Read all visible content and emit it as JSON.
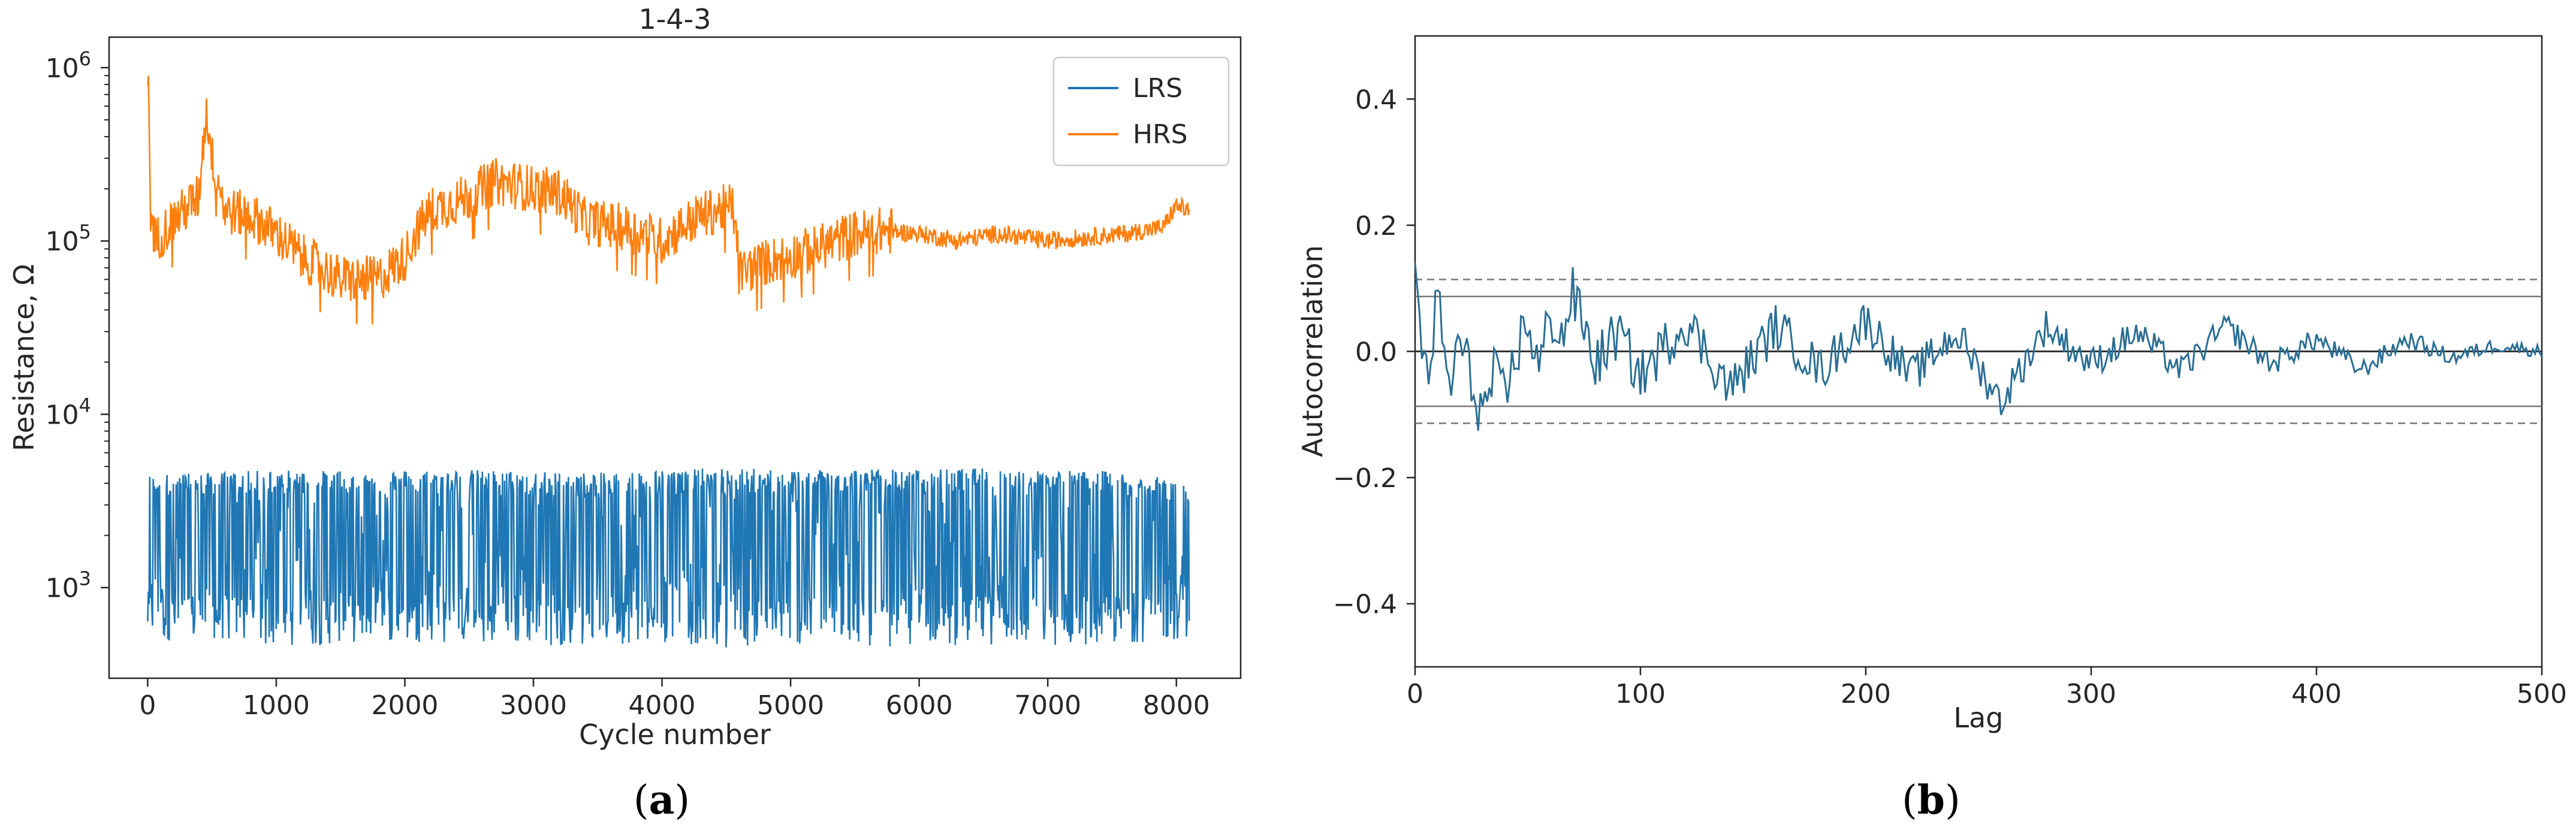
{
  "chart_data": [
    {
      "type": "line",
      "title": "1-4-3",
      "xlabel": "Cycle number",
      "ylabel": "Resistance, Ω",
      "xlim": [
        -300,
        8500
      ],
      "ylim": [
        300,
        1500000
      ],
      "yscale": "log",
      "x_ticks": [
        0,
        1000,
        2000,
        3000,
        4000,
        5000,
        6000,
        7000,
        8000
      ],
      "y_ticks": [
        {
          "value": 1000,
          "base": "10",
          "exp": "3"
        },
        {
          "value": 10000,
          "base": "10",
          "exp": "4"
        },
        {
          "value": 100000,
          "base": "10",
          "exp": "5"
        },
        {
          "value": 1000000,
          "base": "10",
          "exp": "6"
        }
      ],
      "legend": "top-right",
      "series": [
        {
          "name": "LRS",
          "color": "#1f77b4",
          "x": [
            0,
            500,
            1000,
            1500,
            2000,
            2500,
            3000,
            3500,
            4000,
            4500,
            5000,
            5500,
            6000,
            6500,
            7000,
            7500,
            8000,
            8100
          ],
          "upper": [
            4500,
            4600,
            4800,
            4700,
            4800,
            4800,
            4700,
            4600,
            4800,
            4900,
            4800,
            4900,
            4800,
            4900,
            4800,
            4700,
            4200,
            4100
          ],
          "lower": [
            500,
            480,
            450,
            470,
            490,
            470,
            460,
            470,
            480,
            450,
            470,
            460,
            450,
            470,
            460,
            470,
            500,
            520
          ]
        },
        {
          "name": "HRS",
          "color": "#ff7f0e",
          "x": [
            0,
            20,
            60,
            200,
            400,
            460,
            500,
            600,
            800,
            1000,
            1200,
            1500,
            1800,
            2000,
            2200,
            2500,
            2700,
            3000,
            3200,
            3400,
            3700,
            4000,
            4300,
            4550,
            4600,
            4800,
            5200,
            5500,
            5700,
            6000,
            6300,
            6600,
            7000,
            7300,
            7600,
            7900,
            8000,
            8100
          ],
          "values": [
            900000,
            150000,
            100000,
            130000,
            180000,
            550000,
            300000,
            150000,
            140000,
            110000,
            80000,
            60000,
            60000,
            80000,
            150000,
            180000,
            220000,
            200000,
            190000,
            130000,
            120000,
            100000,
            140000,
            160000,
            65000,
            75000,
            90000,
            110000,
            115000,
            110000,
            100000,
            110000,
            100000,
            105000,
            110000,
            120000,
            160000,
            150000
          ]
        }
      ]
    },
    {
      "type": "line",
      "title": "",
      "xlabel": "Lag",
      "ylabel": "Autocorrelation",
      "xlim": [
        0,
        500
      ],
      "ylim": [
        -0.5,
        0.5
      ],
      "x_ticks": [
        0,
        100,
        200,
        300,
        400,
        500
      ],
      "y_ticks": [
        -0.4,
        -0.2,
        0.0,
        0.2,
        0.4
      ],
      "y_tick_labels": [
        "−0.4",
        "−0.2",
        "0.0",
        "0.2",
        "0.4"
      ],
      "confidence_bands": {
        "solid": 0.087,
        "dashed": 0.114
      },
      "series": [
        {
          "name": "",
          "color": "#2a6e93",
          "lags": [
            0,
            2,
            5,
            10,
            15,
            20,
            25,
            30,
            35,
            40,
            45,
            50,
            55,
            60,
            65,
            70,
            75,
            80,
            90,
            100,
            120,
            140,
            160,
            180,
            200,
            220,
            240,
            260,
            280,
            300,
            320,
            340,
            360,
            380,
            400,
            420,
            440,
            460,
            480,
            500
          ],
          "values": [
            0.14,
            0.06,
            -0.05,
            0.08,
            -0.06,
            0.02,
            -0.05,
            -0.1,
            -0.04,
            -0.08,
            0.0,
            0.05,
            -0.03,
            0.06,
            0.02,
            0.09,
            0.04,
            -0.02,
            0.03,
            -0.04,
            0.05,
            -0.06,
            0.04,
            -0.03,
            0.05,
            -0.04,
            0.03,
            -0.08,
            0.04,
            -0.02,
            0.03,
            -0.03,
            0.04,
            -0.02,
            0.02,
            -0.03,
            0.02,
            -0.01,
            0.01,
            0.0
          ]
        }
      ]
    }
  ],
  "captions": {
    "a": {
      "open": "(",
      "letter": "a",
      "close": ")"
    },
    "b": {
      "open": "(",
      "letter": "b",
      "close": ")"
    }
  }
}
